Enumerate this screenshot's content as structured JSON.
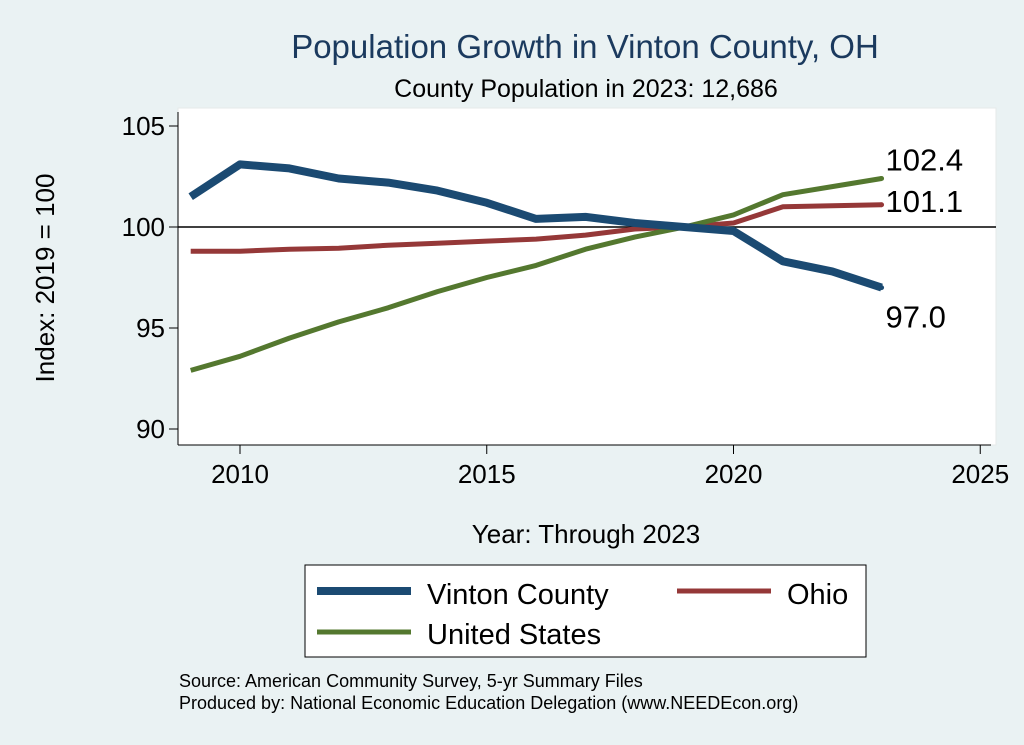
{
  "chart_data": {
    "type": "line",
    "title": "Population Growth in Vinton County, OH",
    "subtitle": "County Population in 2023: 12,686",
    "xlabel": "Year: Through 2023",
    "ylabel": "Index: 2019 = 100",
    "xlim": [
      2009,
      2025
    ],
    "ylim": [
      90,
      105
    ],
    "x_ticks": [
      2010,
      2015,
      2020,
      2025
    ],
    "y_ticks": [
      90,
      95,
      100,
      105
    ],
    "reference_line": 100,
    "grid": false,
    "legend_position": "bottom",
    "x": [
      2009,
      2010,
      2011,
      2012,
      2013,
      2014,
      2015,
      2016,
      2017,
      2018,
      2019,
      2020,
      2021,
      2022,
      2023
    ],
    "series": [
      {
        "name": "Vinton  County",
        "color": "#1b4a72",
        "values": [
          101.5,
          103.1,
          102.9,
          102.4,
          102.2,
          101.8,
          101.2,
          100.4,
          100.5,
          100.2,
          100.0,
          99.8,
          98.3,
          97.8,
          97.0
        ],
        "end_label": "97.0"
      },
      {
        "name": "Ohio",
        "color": "#953838",
        "values": [
          98.8,
          98.8,
          98.9,
          98.95,
          99.1,
          99.2,
          99.3,
          99.4,
          99.6,
          99.9,
          100.0,
          100.2,
          101.0,
          101.05,
          101.1
        ],
        "end_label": "101.1"
      },
      {
        "name": "United States",
        "color": "#54782f",
        "values": [
          92.9,
          93.6,
          94.5,
          95.3,
          96.0,
          96.8,
          97.5,
          98.1,
          98.9,
          99.5,
          100.0,
          100.6,
          101.6,
          102.0,
          102.4
        ],
        "end_label": "102.4"
      }
    ]
  },
  "notes": {
    "source": "Source: American Community Survey, 5-yr Summary Files",
    "produced_by": "Produced by: National Economic Education Delegation (www.NEEDEcon.org)"
  }
}
